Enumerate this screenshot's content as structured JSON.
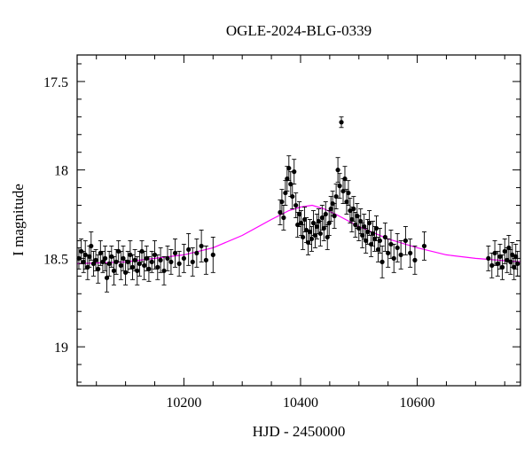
{
  "chart_data": {
    "type": "scatter",
    "title": "OGLE-2024-BLG-0339",
    "xlabel": "HJD - 2450000",
    "ylabel": "I magnitude",
    "xlim": [
      10017,
      10777
    ],
    "ylim": [
      19.22,
      17.35
    ],
    "y_inverted": true,
    "grid": false,
    "x_ticks": [
      10200,
      10400,
      10600
    ],
    "x_tick_labels": [
      "10200",
      "10400",
      "10600"
    ],
    "y_ticks": [
      17.5,
      18,
      18.5,
      19
    ],
    "y_tick_labels": [
      "17.5",
      "18",
      "18.5",
      "19"
    ],
    "colors": {
      "data": "#000000",
      "model": "#ff00ff"
    },
    "model": {
      "name": "",
      "points": [
        [
          10017,
          18.53
        ],
        [
          10100,
          18.52
        ],
        [
          10200,
          18.48
        ],
        [
          10250,
          18.44
        ],
        [
          10300,
          18.37
        ],
        [
          10350,
          18.28
        ],
        [
          10380,
          18.23
        ],
        [
          10400,
          18.21
        ],
        [
          10420,
          18.2
        ],
        [
          10440,
          18.22
        ],
        [
          10460,
          18.25
        ],
        [
          10500,
          18.32
        ],
        [
          10550,
          18.39
        ],
        [
          10600,
          18.44
        ],
        [
          10650,
          18.48
        ],
        [
          10700,
          18.5
        ],
        [
          10777,
          18.52
        ]
      ]
    },
    "series": [
      {
        "points": [
          [
            10020,
            18.5,
            0.06
          ],
          [
            10024,
            18.46,
            0.07
          ],
          [
            10028,
            18.52,
            0.06
          ],
          [
            10031,
            18.48,
            0.08
          ],
          [
            10035,
            18.55,
            0.07
          ],
          [
            10038,
            18.49,
            0.06
          ],
          [
            10041,
            18.43,
            0.08
          ],
          [
            10045,
            18.53,
            0.07
          ],
          [
            10049,
            18.51,
            0.06
          ],
          [
            10053,
            18.56,
            0.08
          ],
          [
            10057,
            18.47,
            0.07
          ],
          [
            10061,
            18.52,
            0.06
          ],
          [
            10065,
            18.5,
            0.07
          ],
          [
            10068,
            18.61,
            0.08
          ],
          [
            10072,
            18.53,
            0.07
          ],
          [
            10076,
            18.49,
            0.06
          ],
          [
            10080,
            18.57,
            0.08
          ],
          [
            10084,
            18.52,
            0.07
          ],
          [
            10088,
            18.46,
            0.06
          ],
          [
            10092,
            18.54,
            0.08
          ],
          [
            10096,
            18.5,
            0.07
          ],
          [
            10100,
            18.58,
            0.07
          ],
          [
            10104,
            18.52,
            0.06
          ],
          [
            10108,
            18.48,
            0.08
          ],
          [
            10112,
            18.55,
            0.07
          ],
          [
            10116,
            18.51,
            0.06
          ],
          [
            10120,
            18.57,
            0.08
          ],
          [
            10124,
            18.53,
            0.07
          ],
          [
            10128,
            18.46,
            0.06
          ],
          [
            10132,
            18.54,
            0.08
          ],
          [
            10136,
            18.5,
            0.07
          ],
          [
            10140,
            18.56,
            0.07
          ],
          [
            10145,
            18.52,
            0.06
          ],
          [
            10150,
            18.48,
            0.08
          ],
          [
            10155,
            18.55,
            0.07
          ],
          [
            10160,
            18.51,
            0.07
          ],
          [
            10166,
            18.57,
            0.08
          ],
          [
            10172,
            18.5,
            0.07
          ],
          [
            10178,
            18.52,
            0.07
          ],
          [
            10185,
            18.47,
            0.08
          ],
          [
            10192,
            18.53,
            0.07
          ],
          [
            10200,
            18.5,
            0.08
          ],
          [
            10208,
            18.45,
            0.09
          ],
          [
            10215,
            18.52,
            0.08
          ],
          [
            10222,
            18.47,
            0.08
          ],
          [
            10230,
            18.43,
            0.09
          ],
          [
            10238,
            18.51,
            0.08
          ],
          [
            10250,
            18.48,
            0.1
          ],
          [
            10365,
            18.24,
            0.07
          ],
          [
            10368,
            18.18,
            0.07
          ],
          [
            10371,
            18.27,
            0.07
          ],
          [
            10374,
            18.13,
            0.07
          ],
          [
            10377,
            18.05,
            0.07
          ],
          [
            10380,
            17.99,
            0.07
          ],
          [
            10383,
            18.08,
            0.07
          ],
          [
            10386,
            18.15,
            0.07
          ],
          [
            10389,
            18.01,
            0.07
          ],
          [
            10392,
            18.2,
            0.07
          ],
          [
            10395,
            18.31,
            0.07
          ],
          [
            10398,
            18.25,
            0.07
          ],
          [
            10401,
            18.3,
            0.07
          ],
          [
            10404,
            18.38,
            0.07
          ],
          [
            10407,
            18.28,
            0.07
          ],
          [
            10410,
            18.34,
            0.07
          ],
          [
            10413,
            18.41,
            0.07
          ],
          [
            10416,
            18.35,
            0.07
          ],
          [
            10419,
            18.39,
            0.07
          ],
          [
            10422,
            18.3,
            0.07
          ],
          [
            10425,
            18.37,
            0.07
          ],
          [
            10428,
            18.32,
            0.07
          ],
          [
            10431,
            18.29,
            0.07
          ],
          [
            10434,
            18.36,
            0.07
          ],
          [
            10437,
            18.27,
            0.07
          ],
          [
            10440,
            18.33,
            0.07
          ],
          [
            10443,
            18.25,
            0.07
          ],
          [
            10446,
            18.38,
            0.07
          ],
          [
            10449,
            18.3,
            0.07
          ],
          [
            10452,
            18.22,
            0.07
          ],
          [
            10455,
            18.19,
            0.07
          ],
          [
            10458,
            18.26,
            0.07
          ],
          [
            10461,
            18.15,
            0.07
          ],
          [
            10464,
            18.0,
            0.07
          ],
          [
            10467,
            18.09,
            0.07
          ],
          [
            10470,
            17.73,
            0.03
          ],
          [
            10473,
            18.12,
            0.07
          ],
          [
            10476,
            18.05,
            0.07
          ],
          [
            10479,
            18.18,
            0.07
          ],
          [
            10482,
            18.13,
            0.07
          ],
          [
            10485,
            18.23,
            0.07
          ],
          [
            10488,
            18.28,
            0.07
          ],
          [
            10491,
            18.22,
            0.07
          ],
          [
            10494,
            18.31,
            0.07
          ],
          [
            10497,
            18.26,
            0.07
          ],
          [
            10500,
            18.33,
            0.07
          ],
          [
            10503,
            18.29,
            0.07
          ],
          [
            10506,
            18.37,
            0.07
          ],
          [
            10509,
            18.32,
            0.07
          ],
          [
            10512,
            18.4,
            0.07
          ],
          [
            10515,
            18.35,
            0.07
          ],
          [
            10518,
            18.3,
            0.07
          ],
          [
            10521,
            18.42,
            0.07
          ],
          [
            10524,
            18.36,
            0.07
          ],
          [
            10527,
            18.39,
            0.07
          ],
          [
            10530,
            18.33,
            0.07
          ],
          [
            10533,
            18.45,
            0.07
          ],
          [
            10536,
            18.4,
            0.07
          ],
          [
            10540,
            18.52,
            0.09
          ],
          [
            10545,
            18.38,
            0.08
          ],
          [
            10550,
            18.47,
            0.08
          ],
          [
            10555,
            18.42,
            0.08
          ],
          [
            10560,
            18.5,
            0.08
          ],
          [
            10566,
            18.44,
            0.08
          ],
          [
            10572,
            18.48,
            0.08
          ],
          [
            10580,
            18.4,
            0.08
          ],
          [
            10588,
            18.47,
            0.08
          ],
          [
            10596,
            18.51,
            0.08
          ],
          [
            10612,
            18.43,
            0.08
          ],
          [
            10722,
            18.5,
            0.07
          ],
          [
            10728,
            18.54,
            0.07
          ],
          [
            10733,
            18.47,
            0.07
          ],
          [
            10738,
            18.53,
            0.07
          ],
          [
            10742,
            18.49,
            0.07
          ],
          [
            10746,
            18.55,
            0.07
          ],
          [
            10750,
            18.46,
            0.07
          ],
          [
            10754,
            18.51,
            0.07
          ],
          [
            10757,
            18.44,
            0.07
          ],
          [
            10760,
            18.52,
            0.07
          ],
          [
            10763,
            18.48,
            0.07
          ],
          [
            10766,
            18.55,
            0.07
          ],
          [
            10769,
            18.49,
            0.07
          ],
          [
            10772,
            18.53,
            0.07
          ]
        ]
      }
    ]
  }
}
